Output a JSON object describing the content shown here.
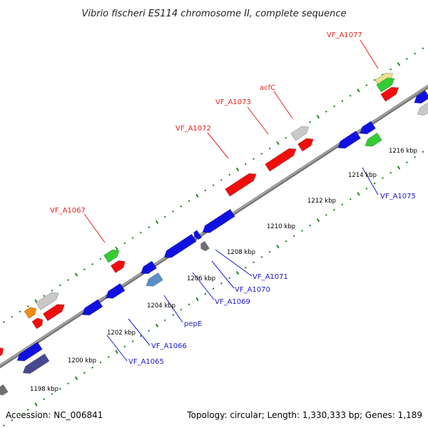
{
  "title": "Vibrio fischeri ES114 chromosome II, complete sequence",
  "footer": {
    "accession": "Accession: NC_006841",
    "summary": "Topology: circular; Length: 1,330,333 bp; Genes: 1,189"
  },
  "colors": {
    "backbone": "#808080",
    "outer_ticks": "#1f8a1f",
    "inner_ticks": "#1f8a1f",
    "label_forward": "#e8231c",
    "label_reverse": "#1a1acc",
    "red": "#f20d0d",
    "blue": "#1010e0",
    "green": "#33cc33",
    "gray": "#c8c8c8",
    "darkgray": "#707070",
    "orange": "#f28c12",
    "yellow": "#e8df8c",
    "steelblue": "#5a8fc8",
    "slate": "#484890"
  },
  "scale": {
    "kbp_labels": [
      "1198 kbp",
      "1200 kbp",
      "1202 kbp",
      "1204 kbp",
      "1206 kbp",
      "1208 kbp",
      "1210 kbp",
      "1212 kbp",
      "1214 kbp",
      "1216 kbp"
    ]
  },
  "labels_forward": [
    "VF_A1067",
    "VF_A1072",
    "VF_A1073",
    "acfC",
    "VF_A1077"
  ],
  "labels_reverse": [
    "VF_A1065",
    "VF_A1066",
    "pepE",
    "VF_A1069",
    "VF_A1070",
    "VF_A1071",
    "VF_A1075"
  ]
}
